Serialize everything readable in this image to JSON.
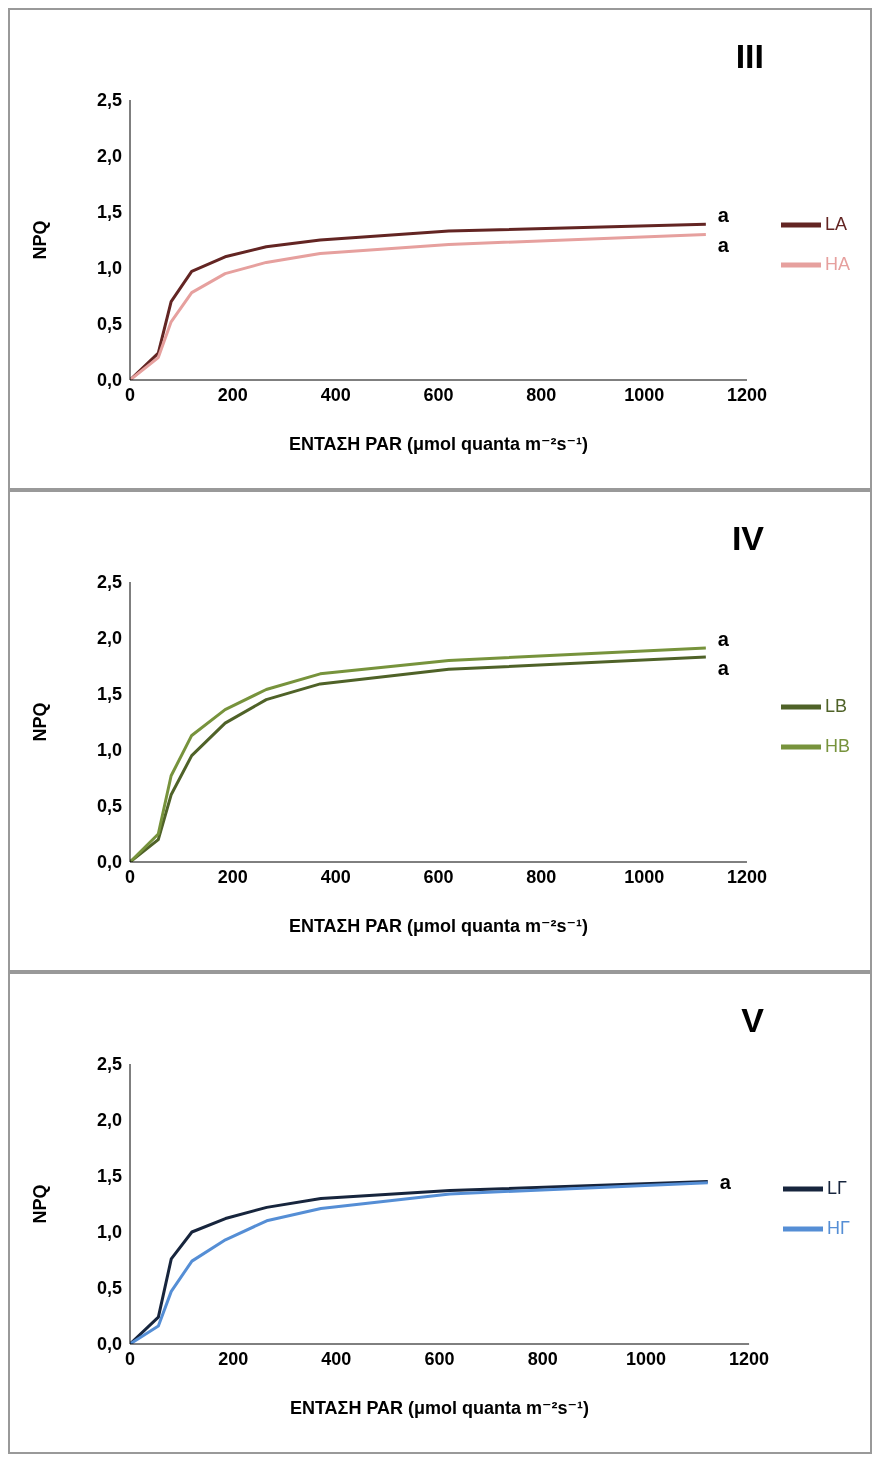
{
  "chart_data": [
    {
      "type": "line",
      "title": "III",
      "xlabel": "ΕΝΤΑΣΗ PAR (μmol quanta m⁻²s⁻¹)",
      "ylabel": "NPQ",
      "x": [
        0,
        55,
        80,
        120,
        185,
        265,
        370,
        620,
        1120
      ],
      "series": [
        {
          "name": "LA",
          "color": "#632523",
          "values": [
            0,
            0.24,
            0.7,
            0.97,
            1.1,
            1.19,
            1.25,
            1.33,
            1.39
          ]
        },
        {
          "name": "HA",
          "color": "#e6a09e",
          "values": [
            0,
            0.2,
            0.52,
            0.78,
            0.95,
            1.05,
            1.13,
            1.21,
            1.3
          ]
        }
      ],
      "xlim": [
        0,
        1200
      ],
      "xticks": [
        0,
        200,
        400,
        600,
        800,
        1000,
        1200
      ],
      "ylim": [
        0,
        2.5
      ],
      "yticks": [
        {
          "value": 0,
          "label": "0,0"
        },
        {
          "value": 0.5,
          "label": "0,5"
        },
        {
          "value": 1,
          "label": "1,0"
        },
        {
          "value": 1.5,
          "label": "1,5"
        },
        {
          "value": 2,
          "label": "2,0"
        },
        {
          "value": 2.5,
          "label": "2,5"
        }
      ],
      "annotations": [
        "a",
        "a"
      ],
      "legend": "right",
      "grid": false,
      "marker": "none",
      "line_style": "solid"
    },
    {
      "type": "line",
      "title": "IV",
      "xlabel": "ΕΝΤΑΣΗ PAR (μmol quanta m⁻²s⁻¹)",
      "ylabel": "NPQ",
      "x": [
        0,
        55,
        80,
        120,
        185,
        265,
        370,
        620,
        1120
      ],
      "series": [
        {
          "name": "LB",
          "color": "#4f6228",
          "values": [
            0,
            0.2,
            0.6,
            0.95,
            1.24,
            1.45,
            1.59,
            1.72,
            1.83
          ]
        },
        {
          "name": "HB",
          "color": "#77933c",
          "values": [
            0,
            0.25,
            0.77,
            1.13,
            1.36,
            1.54,
            1.68,
            1.8,
            1.91
          ]
        }
      ],
      "xlim": [
        0,
        1200
      ],
      "xticks": [
        0,
        200,
        400,
        600,
        800,
        1000,
        1200
      ],
      "ylim": [
        0,
        2.5
      ],
      "yticks": [
        {
          "value": 0,
          "label": "0,0"
        },
        {
          "value": 0.5,
          "label": "0,5"
        },
        {
          "value": 1,
          "label": "1,0"
        },
        {
          "value": 1.5,
          "label": "1,5"
        },
        {
          "value": 2,
          "label": "2,0"
        },
        {
          "value": 2.5,
          "label": "2,5"
        }
      ],
      "annotations": [
        "a",
        "a"
      ],
      "legend": "right",
      "grid": false,
      "marker": "none",
      "line_style": "solid"
    },
    {
      "type": "line",
      "title": "V",
      "xlabel": "ΕΝΤΑΣΗ PAR (μmol quanta m⁻²s⁻¹)",
      "ylabel": "NPQ",
      "x": [
        0,
        55,
        80,
        120,
        185,
        265,
        370,
        620,
        1120
      ],
      "series": [
        {
          "name": "LΓ",
          "color": "#17253d",
          "values": [
            0,
            0.24,
            0.76,
            1.0,
            1.12,
            1.22,
            1.3,
            1.37,
            1.45
          ]
        },
        {
          "name": "HΓ",
          "color": "#558ed5",
          "values": [
            0,
            0.16,
            0.47,
            0.74,
            0.93,
            1.1,
            1.21,
            1.34,
            1.44
          ]
        }
      ],
      "xlim": [
        0,
        1200
      ],
      "xticks": [
        0,
        200,
        400,
        600,
        800,
        1000,
        1200
      ],
      "ylim": [
        0,
        2.5
      ],
      "yticks": [
        {
          "value": 0,
          "label": "0,0"
        },
        {
          "value": 0.5,
          "label": "0,5"
        },
        {
          "value": 1,
          "label": "1,0"
        },
        {
          "value": 1.5,
          "label": "1,5"
        },
        {
          "value": 2,
          "label": "2,0"
        },
        {
          "value": 2.5,
          "label": "2,5"
        }
      ],
      "annotations": [
        "a"
      ],
      "legend": "right",
      "grid": false,
      "marker": "none",
      "line_style": "solid"
    }
  ]
}
